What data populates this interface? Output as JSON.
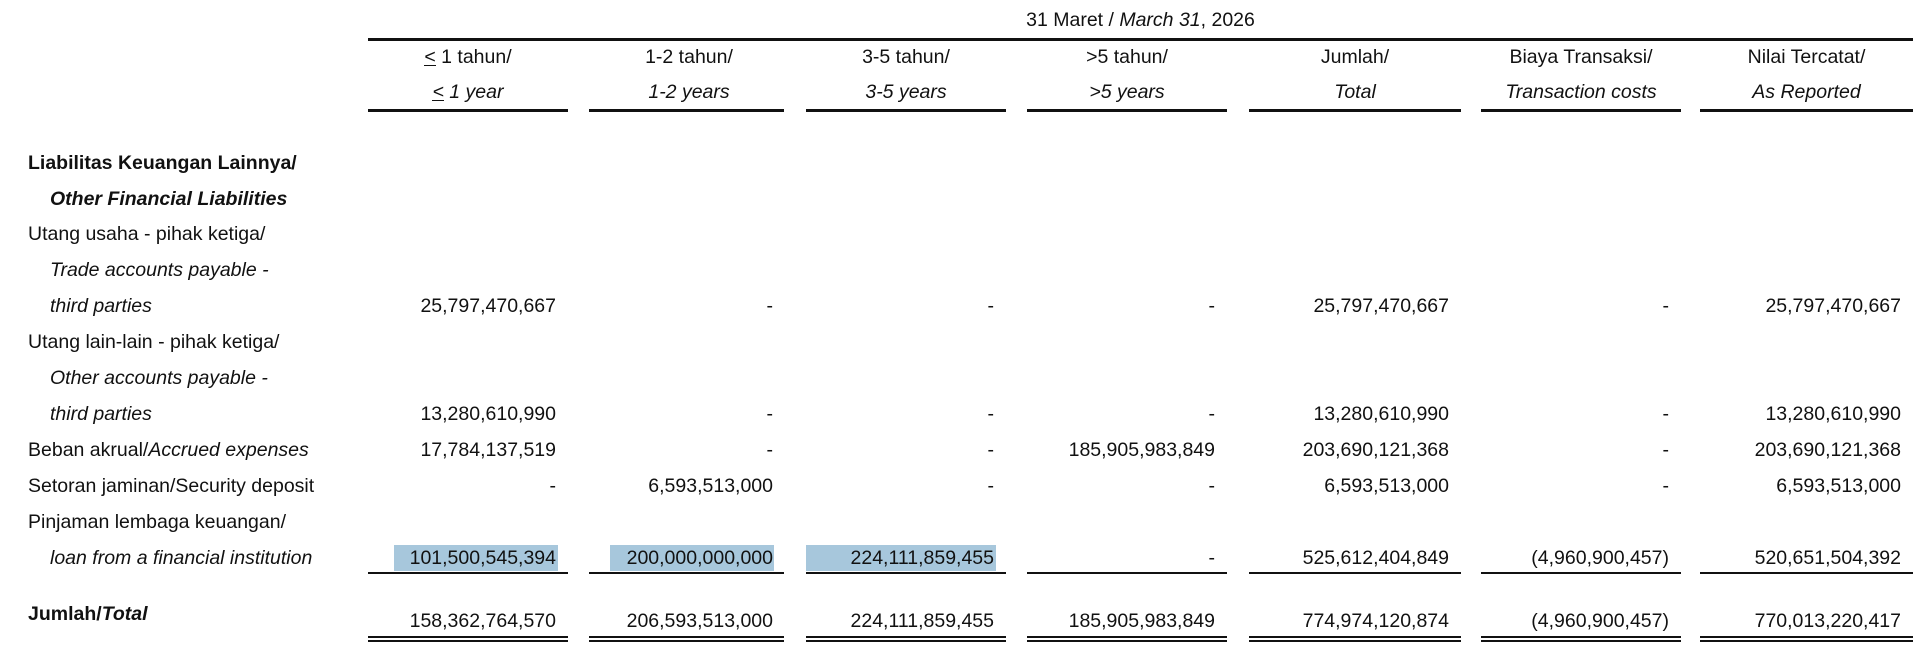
{
  "header": {
    "date_prefix": "31 Maret /",
    "date_italic": "March 31",
    "date_suffix": ", 2026",
    "le_symbol": "<",
    "columns": [
      {
        "line1": " 1 tahun/",
        "line2": " 1 year",
        "has_le": true
      },
      {
        "line1": "1-2 tahun/",
        "line2": "1-2 years"
      },
      {
        "line1": "3-5 tahun/",
        "line2": "3-5 years"
      },
      {
        "line1": ">5 tahun/",
        "line2": ">5 years"
      },
      {
        "line1": "Jumlah/",
        "line2": "Total"
      },
      {
        "line1": "Biaya Transaksi/",
        "line2": "Transaction costs"
      },
      {
        "line1": "Nilai Tercatat/",
        "line2": "As Reported"
      }
    ]
  },
  "section": {
    "title1": "Liabilitas Keuangan Lainnya/",
    "title2": "Other Financial Liabilities"
  },
  "rows": [
    {
      "label1": "Utang usaha - pihak ketiga/",
      "label2": "Trade accounts payable -",
      "label3": "third parties",
      "values": [
        "25,797,470,667",
        "-",
        "-",
        "-",
        "25,797,470,667",
        "-",
        "25,797,470,667"
      ]
    },
    {
      "label1": "Utang lain-lain - pihak ketiga/",
      "label2": "Other accounts payable -",
      "label3": "third parties",
      "values": [
        "13,280,610,990",
        "-",
        "-",
        "-",
        "13,280,610,990",
        "-",
        "13,280,610,990"
      ]
    },
    {
      "label_plain": "Beban akrual/",
      "label_italic": "Accrued expenses",
      "values": [
        "17,784,137,519",
        "-",
        "-",
        "185,905,983,849",
        "203,690,121,368",
        "-",
        "203,690,121,368"
      ]
    },
    {
      "label_plain": "Setoran jaminan/Security deposit",
      "values": [
        "-",
        "6,593,513,000",
        "-",
        "-",
        "6,593,513,000",
        "-",
        "6,593,513,000"
      ]
    },
    {
      "label1": "Pinjaman lembaga keuangan/",
      "label2": "loan from a financial institution",
      "values": [
        "101,500,545,394",
        "200,000,000,000",
        "224,111,859,455",
        "-",
        "525,612,404,849",
        "(4,960,900,457)",
        "520,651,504,392"
      ]
    }
  ],
  "total": {
    "label_plain": "Jumlah/",
    "label_italic": "Total",
    "values": [
      "158,362,764,570",
      "206,593,513,000",
      "224,111,859,455",
      "185,905,983,849",
      "774,974,120,874",
      "(4,960,900,457)",
      "770,013,220,417"
    ]
  }
}
